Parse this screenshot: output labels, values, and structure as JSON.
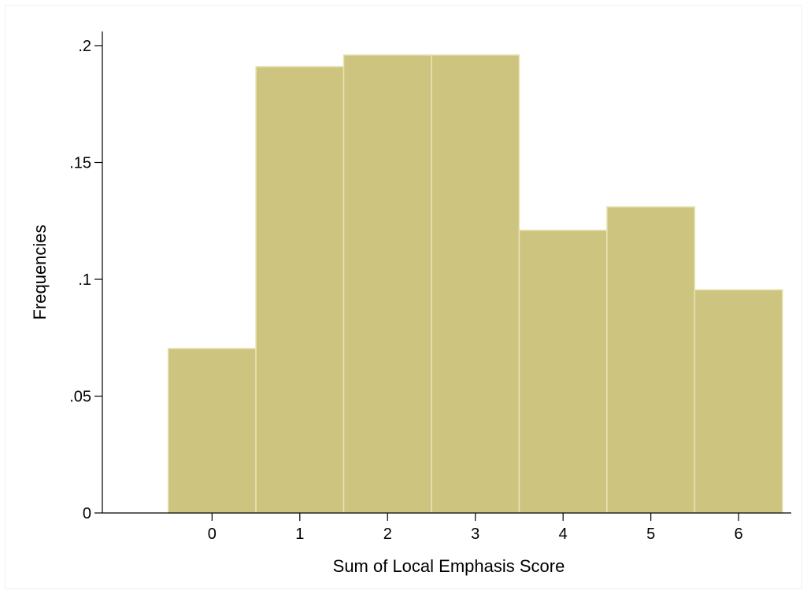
{
  "chart_data": {
    "type": "bar",
    "title": "",
    "xlabel": "Sum of Local Emphasis Score",
    "ylabel": "Frequencies",
    "categories": [
      "0",
      "1",
      "2",
      "3",
      "4",
      "5",
      "6"
    ],
    "values": [
      0.0704,
      0.191,
      0.196,
      0.196,
      0.121,
      0.131,
      0.0955
    ],
    "ylim": [
      0,
      0.2
    ],
    "xlim": [
      -1.25,
      6.6
    ],
    "ytick_values": [
      0,
      0.05,
      0.1,
      0.15,
      0.2
    ],
    "ytick_labels": [
      "0",
      ".05",
      ".1",
      ".15",
      ".2"
    ],
    "xtick_values": [
      0,
      1,
      2,
      3,
      4,
      5,
      6
    ],
    "xtick_labels": [
      "0",
      "1",
      "2",
      "3",
      "4",
      "5",
      "6"
    ],
    "grid": false,
    "legend": "none",
    "bar_color": "#cdc47f",
    "bar_edge_color": "#e9e3b4"
  }
}
